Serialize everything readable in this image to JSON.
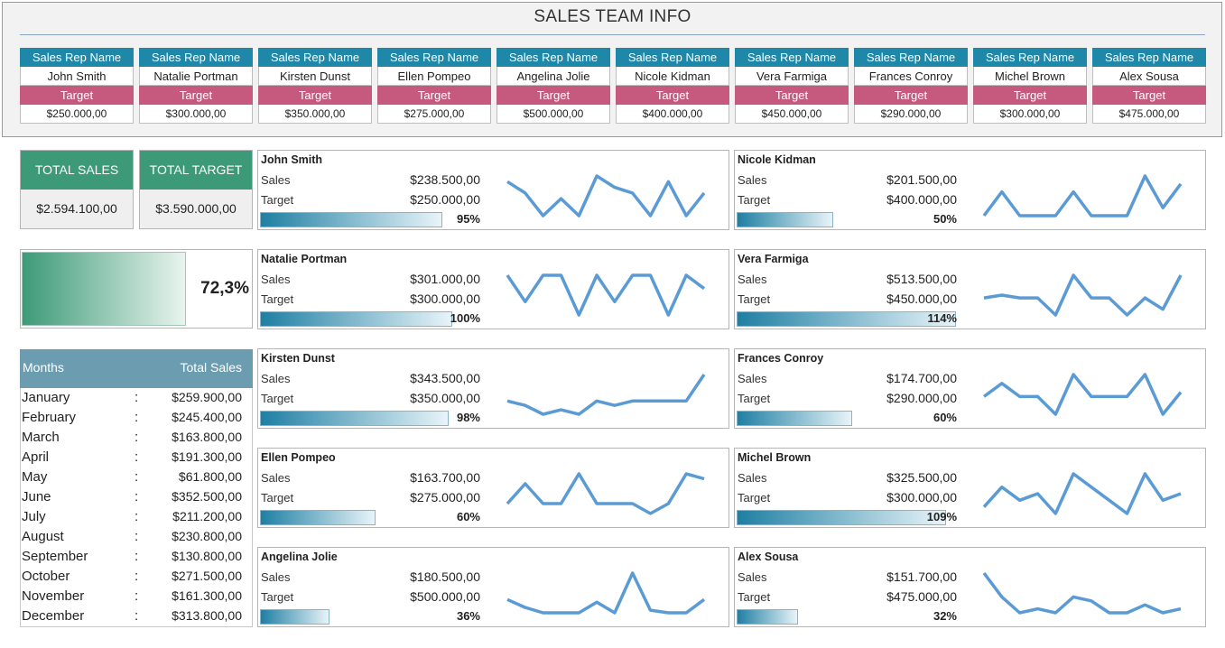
{
  "title": "SALES TEAM INFO",
  "reps_table": {
    "head_label": "Sales Rep Name",
    "target_label": "Target",
    "reps": [
      {
        "name": "John Smith",
        "target": "$250.000,00"
      },
      {
        "name": "Natalie Portman",
        "target": "$300.000,00"
      },
      {
        "name": "Kirsten Dunst",
        "target": "$350.000,00"
      },
      {
        "name": "Ellen Pompeo",
        "target": "$275.000,00"
      },
      {
        "name": "Angelina Jolie",
        "target": "$500.000,00"
      },
      {
        "name": "Nicole Kidman",
        "target": "$400.000,00"
      },
      {
        "name": "Vera Farmiga",
        "target": "$450.000,00"
      },
      {
        "name": "Frances Conroy",
        "target": "$290.000,00"
      },
      {
        "name": "Michel Brown",
        "target": "$300.000,00"
      },
      {
        "name": "Alex Sousa",
        "target": "$475.000,00"
      }
    ]
  },
  "totals": {
    "sales_label": "TOTAL SALES",
    "sales_value": "$2.594.100,00",
    "target_label": "TOTAL TARGET",
    "target_value": "$3.590.000,00",
    "achievement_pct": "72,3%",
    "achievement_fraction": 0.723
  },
  "months_table": {
    "col_month": "Months",
    "col_sales": "Total Sales",
    "separator": ":",
    "rows": [
      {
        "month": "January",
        "value": "$259.900,00"
      },
      {
        "month": "February",
        "value": "$245.400,00"
      },
      {
        "month": "March",
        "value": "$163.800,00"
      },
      {
        "month": "April",
        "value": "$191.300,00"
      },
      {
        "month": "May",
        "value": "$61.800,00"
      },
      {
        "month": "June",
        "value": "$352.500,00"
      },
      {
        "month": "July",
        "value": "$211.200,00"
      },
      {
        "month": "August",
        "value": "$230.800,00"
      },
      {
        "month": "September",
        "value": "$130.800,00"
      },
      {
        "month": "October",
        "value": "$271.500,00"
      },
      {
        "month": "November",
        "value": "$161.300,00"
      },
      {
        "month": "December",
        "value": "$313.800,00"
      }
    ]
  },
  "card_labels": {
    "sales": "Sales",
    "target": "Target"
  },
  "sparkline_color": "#5b9bd5",
  "cards": [
    {
      "name": "John Smith",
      "sales": "$238.500,00",
      "target": "$250.000,00",
      "pct": "95%",
      "fraction": 0.95,
      "spark": [
        8,
        6,
        2,
        5,
        2,
        9,
        7,
        6,
        2,
        8,
        2,
        6
      ]
    },
    {
      "name": "Natalie Portman",
      "sales": "$301.000,00",
      "target": "$300.000,00",
      "pct": "100%",
      "fraction": 1.0,
      "spark": [
        7,
        3,
        7,
        7,
        1,
        7,
        3,
        7,
        7,
        1,
        7,
        5
      ]
    },
    {
      "name": "Kirsten Dunst",
      "sales": "$343.500,00",
      "target": "$350.000,00",
      "pct": "98%",
      "fraction": 0.98,
      "spark": [
        3,
        2.5,
        1.5,
        2,
        1.5,
        3,
        2.5,
        3,
        3,
        3,
        3,
        6
      ]
    },
    {
      "name": "Ellen Pompeo",
      "sales": "$163.700,00",
      "target": "$275.000,00",
      "pct": "60%",
      "fraction": 0.6,
      "spark": [
        2,
        4,
        2,
        2,
        5,
        2,
        2,
        2,
        1,
        2,
        5,
        4.5
      ]
    },
    {
      "name": "Angelina Jolie",
      "sales": "$180.500,00",
      "target": "$500.000,00",
      "pct": "36%",
      "fraction": 0.36,
      "spark": [
        4,
        2.5,
        1.5,
        1.5,
        1.5,
        3.5,
        1.5,
        9,
        2,
        1.5,
        1.5,
        4
      ]
    },
    {
      "name": "Nicole Kidman",
      "sales": "$201.500,00",
      "target": "$400.000,00",
      "pct": "50%",
      "fraction": 0.5,
      "spark": [
        2,
        5,
        2,
        2,
        2,
        5,
        2,
        2,
        2,
        7,
        3,
        6
      ]
    },
    {
      "name": "Vera Farmiga",
      "sales": "$513.500,00",
      "target": "$450.000,00",
      "pct": "114%",
      "fraction": 1.14,
      "spark": [
        4,
        4.5,
        4,
        4,
        1,
        8,
        4,
        4,
        1,
        4,
        2,
        8
      ]
    },
    {
      "name": "Frances Conroy",
      "sales": "$174.700,00",
      "target": "$290.000,00",
      "pct": "60%",
      "fraction": 0.6,
      "spark": [
        3,
        4.5,
        3,
        3,
        1,
        5.5,
        3,
        3,
        3,
        5.5,
        1,
        3.5
      ]
    },
    {
      "name": "Michel Brown",
      "sales": "$325.500,00",
      "target": "$300.000,00",
      "pct": "109%",
      "fraction": 1.09,
      "spark": [
        2,
        5,
        3,
        4,
        1,
        7,
        5,
        3,
        1,
        7,
        3,
        4
      ]
    },
    {
      "name": "Alex Sousa",
      "sales": "$151.700,00",
      "target": "$475.000,00",
      "pct": "32%",
      "fraction": 0.32,
      "spark": [
        6,
        3,
        1,
        1.5,
        1,
        3,
        2.5,
        1,
        1,
        2,
        1,
        1.5
      ]
    }
  ]
}
